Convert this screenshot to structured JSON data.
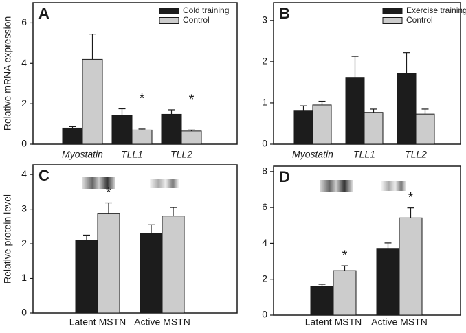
{
  "chart_data": [
    {
      "type": "bar",
      "panel_label": "A",
      "ylabel": "Relative mRNA expression",
      "category_style": "italic",
      "categories": [
        "Myostatin",
        "TLL1",
        "TLL2"
      ],
      "series": [
        {
          "name": "Cold training",
          "color": "#1c1c1c",
          "values": [
            0.8,
            1.42,
            1.48
          ],
          "errors": [
            0.07,
            0.33,
            0.22
          ]
        },
        {
          "name": "Control",
          "color": "#cccccc",
          "values": [
            4.2,
            0.7,
            0.65
          ],
          "errors": [
            1.25,
            0.05,
            0.05
          ]
        }
      ],
      "annotations": [
        null,
        "*",
        "*"
      ],
      "ylim": [
        0,
        7
      ],
      "yticks": [
        0,
        2,
        4,
        6
      ],
      "legend": "upper right"
    },
    {
      "type": "bar",
      "panel_label": "B",
      "category_style": "italic",
      "categories": [
        "Myostatin",
        "TLL1",
        "TLL2"
      ],
      "series": [
        {
          "name": "Exercise training",
          "color": "#1c1c1c",
          "values": [
            0.82,
            1.62,
            1.72
          ],
          "errors": [
            0.11,
            0.51,
            0.5
          ]
        },
        {
          "name": "Control",
          "color": "#cccccc",
          "values": [
            0.95,
            0.77,
            0.73
          ],
          "errors": [
            0.09,
            0.08,
            0.12
          ]
        }
      ],
      "ylim": [
        0,
        3.43
      ],
      "yticks": [
        0,
        1,
        2,
        3
      ],
      "legend": "upper right"
    },
    {
      "type": "bar",
      "panel_label": "C",
      "ylabel": "Relative protein level",
      "category_style": "normal",
      "categories": [
        "Latent MSTN",
        "Active MSTN"
      ],
      "series": [
        {
          "color": "#1c1c1c",
          "values": [
            2.1,
            2.3
          ],
          "errors": [
            0.15,
            0.25
          ]
        },
        {
          "color": "#cccccc",
          "values": [
            2.88,
            2.8
          ],
          "errors": [
            0.3,
            0.25
          ]
        }
      ],
      "annotations": [
        "*",
        null
      ],
      "ylim": [
        0,
        4.28
      ],
      "yticks": [
        0,
        1,
        2,
        3,
        4
      ]
    },
    {
      "type": "bar",
      "panel_label": "D",
      "category_style": "normal",
      "categories": [
        "Latent MSTN",
        "Active MSTN"
      ],
      "series": [
        {
          "color": "#1c1c1c",
          "values": [
            1.6,
            3.72
          ],
          "errors": [
            0.12,
            0.3
          ]
        },
        {
          "color": "#cccccc",
          "values": [
            2.48,
            5.42
          ],
          "errors": [
            0.27,
            0.56
          ]
        }
      ],
      "annotations": [
        "*",
        "*"
      ],
      "ylim": [
        0,
        8.3
      ],
      "yticks": [
        0,
        2,
        4,
        6,
        8
      ]
    }
  ]
}
